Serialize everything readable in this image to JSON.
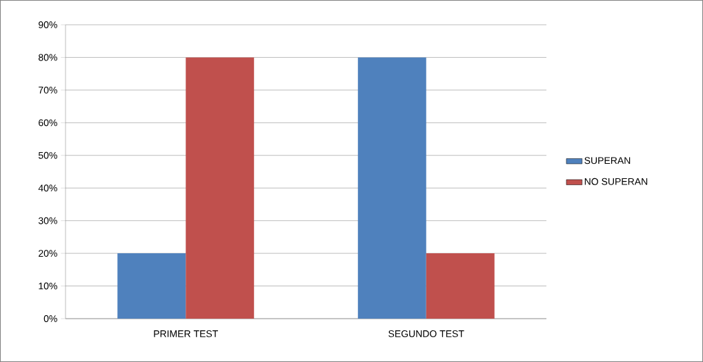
{
  "chart_data": {
    "type": "bar",
    "categories": [
      "PRIMER TEST",
      "SEGUNDO TEST"
    ],
    "series": [
      {
        "name": "SUPERAN",
        "color": "#4f81bd",
        "values": [
          20,
          80
        ]
      },
      {
        "name": "NO SUPERAN",
        "color": "#c0504d",
        "values": [
          80,
          20
        ]
      }
    ],
    "ylim": [
      0,
      90
    ],
    "yticks": [
      {
        "value": 0,
        "label": "0%"
      },
      {
        "value": 10,
        "label": "10%"
      },
      {
        "value": 20,
        "label": "20%"
      },
      {
        "value": 30,
        "label": "30%"
      },
      {
        "value": 40,
        "label": "40%"
      },
      {
        "value": 50,
        "label": "50%"
      },
      {
        "value": 60,
        "label": "60%"
      },
      {
        "value": 70,
        "label": "70%"
      },
      {
        "value": 80,
        "label": "80%"
      },
      {
        "value": 90,
        "label": "90%"
      }
    ],
    "grid": "y",
    "legend": "right"
  }
}
